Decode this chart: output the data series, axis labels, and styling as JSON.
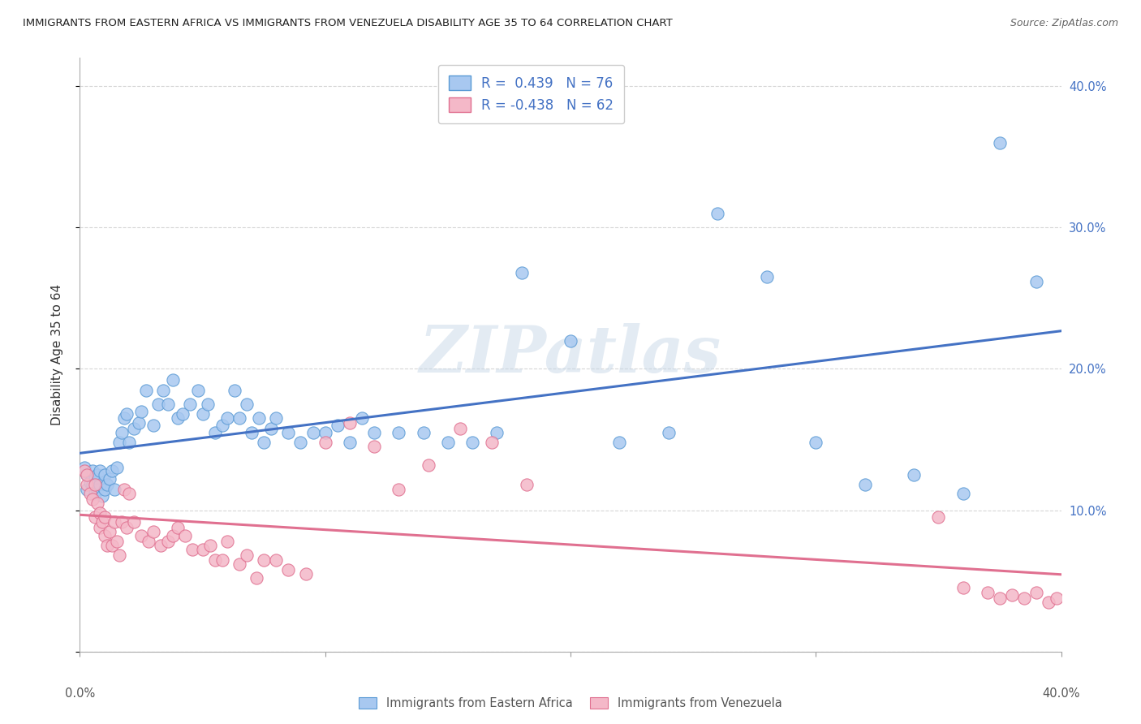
{
  "title": "IMMIGRANTS FROM EASTERN AFRICA VS IMMIGRANTS FROM VENEZUELA DISABILITY AGE 35 TO 64 CORRELATION CHART",
  "source": "Source: ZipAtlas.com",
  "ylabel": "Disability Age 35 to 64",
  "xlim": [
    0.0,
    0.4
  ],
  "ylim": [
    0.0,
    0.42
  ],
  "x_tick_left_label": "0.0%",
  "x_tick_right_label": "40.0%",
  "x_ticks_minor": [
    0.0,
    0.1,
    0.2,
    0.3,
    0.4
  ],
  "y_ticks": [
    0.0,
    0.1,
    0.2,
    0.3,
    0.4
  ],
  "y_tick_labels_right": [
    "",
    "10.0%",
    "20.0%",
    "30.0%",
    "40.0%"
  ],
  "series1_color": "#a8c8f0",
  "series1_edge_color": "#5b9bd5",
  "series1_line_color": "#4472c4",
  "series2_color": "#f4b8c8",
  "series2_edge_color": "#e07090",
  "series2_line_color": "#e07090",
  "series1_R": 0.439,
  "series1_N": 76,
  "series2_R": -0.438,
  "series2_N": 62,
  "legend_label1": "Immigrants from Eastern Africa",
  "legend_label2": "Immigrants from Venezuela",
  "background_color": "#ffffff",
  "watermark_text": "ZIPatlas",
  "series1_x": [
    0.002,
    0.003,
    0.003,
    0.004,
    0.005,
    0.005,
    0.006,
    0.006,
    0.007,
    0.007,
    0.008,
    0.008,
    0.009,
    0.01,
    0.01,
    0.011,
    0.012,
    0.013,
    0.014,
    0.015,
    0.016,
    0.017,
    0.018,
    0.019,
    0.02,
    0.022,
    0.024,
    0.025,
    0.027,
    0.03,
    0.032,
    0.034,
    0.036,
    0.038,
    0.04,
    0.042,
    0.045,
    0.048,
    0.05,
    0.052,
    0.055,
    0.058,
    0.06,
    0.063,
    0.065,
    0.068,
    0.07,
    0.073,
    0.075,
    0.078,
    0.08,
    0.085,
    0.09,
    0.095,
    0.1,
    0.105,
    0.11,
    0.115,
    0.12,
    0.13,
    0.14,
    0.15,
    0.16,
    0.17,
    0.18,
    0.2,
    0.22,
    0.24,
    0.26,
    0.28,
    0.3,
    0.32,
    0.34,
    0.36,
    0.375,
    0.39
  ],
  "series1_y": [
    0.13,
    0.125,
    0.115,
    0.12,
    0.118,
    0.128,
    0.112,
    0.122,
    0.115,
    0.125,
    0.118,
    0.128,
    0.11,
    0.115,
    0.125,
    0.118,
    0.122,
    0.128,
    0.115,
    0.13,
    0.148,
    0.155,
    0.165,
    0.168,
    0.148,
    0.158,
    0.162,
    0.17,
    0.185,
    0.16,
    0.175,
    0.185,
    0.175,
    0.192,
    0.165,
    0.168,
    0.175,
    0.185,
    0.168,
    0.175,
    0.155,
    0.16,
    0.165,
    0.185,
    0.165,
    0.175,
    0.155,
    0.165,
    0.148,
    0.158,
    0.165,
    0.155,
    0.148,
    0.155,
    0.155,
    0.16,
    0.148,
    0.165,
    0.155,
    0.155,
    0.155,
    0.148,
    0.148,
    0.155,
    0.268,
    0.22,
    0.148,
    0.155,
    0.31,
    0.265,
    0.148,
    0.118,
    0.125,
    0.112,
    0.36,
    0.262
  ],
  "series2_x": [
    0.002,
    0.003,
    0.003,
    0.004,
    0.005,
    0.006,
    0.006,
    0.007,
    0.008,
    0.008,
    0.009,
    0.01,
    0.01,
    0.011,
    0.012,
    0.013,
    0.014,
    0.015,
    0.016,
    0.017,
    0.018,
    0.019,
    0.02,
    0.022,
    0.025,
    0.028,
    0.03,
    0.033,
    0.036,
    0.038,
    0.04,
    0.043,
    0.046,
    0.05,
    0.053,
    0.055,
    0.058,
    0.06,
    0.065,
    0.068,
    0.072,
    0.075,
    0.08,
    0.085,
    0.092,
    0.1,
    0.11,
    0.12,
    0.13,
    0.142,
    0.155,
    0.168,
    0.182,
    0.35,
    0.36,
    0.37,
    0.375,
    0.38,
    0.385,
    0.39,
    0.395,
    0.398
  ],
  "series2_y": [
    0.128,
    0.118,
    0.125,
    0.112,
    0.108,
    0.118,
    0.095,
    0.105,
    0.088,
    0.098,
    0.092,
    0.082,
    0.095,
    0.075,
    0.085,
    0.075,
    0.092,
    0.078,
    0.068,
    0.092,
    0.115,
    0.088,
    0.112,
    0.092,
    0.082,
    0.078,
    0.085,
    0.075,
    0.078,
    0.082,
    0.088,
    0.082,
    0.072,
    0.072,
    0.075,
    0.065,
    0.065,
    0.078,
    0.062,
    0.068,
    0.052,
    0.065,
    0.065,
    0.058,
    0.055,
    0.148,
    0.162,
    0.145,
    0.115,
    0.132,
    0.158,
    0.148,
    0.118,
    0.095,
    0.045,
    0.042,
    0.038,
    0.04,
    0.038,
    0.042,
    0.035,
    0.038
  ]
}
